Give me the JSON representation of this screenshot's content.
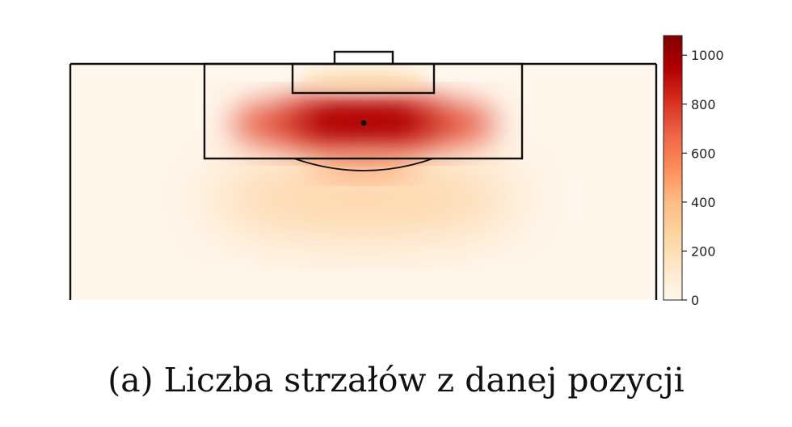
{
  "caption": "(a) Liczba strzałów z danej pozycji",
  "chart_data": {
    "type": "heatmap",
    "title": "",
    "xlabel": "",
    "ylabel": "",
    "subject": "shot locations on football pitch half (attacking third)",
    "colormap": [
      "#fff7ec",
      "#fee8c8",
      "#fdd49e",
      "#fdbb84",
      "#fc8d59",
      "#ef6548",
      "#d7301f",
      "#b30000",
      "#7f0000"
    ],
    "colorbar": {
      "range": [
        0,
        1080
      ],
      "ticks": [
        0,
        200,
        400,
        600,
        800,
        1000
      ],
      "tick_labels": [
        "0",
        "200",
        "400",
        "600",
        "800",
        "1000"
      ]
    },
    "peak_value": 1050,
    "hotspots": [
      {
        "region": "central band inside penalty area (around penalty spot)",
        "value": 950
      },
      {
        "region": "left half-space inside penalty area",
        "value": 750
      },
      {
        "region": "right half-space inside penalty area",
        "value": 750
      },
      {
        "region": "six-yard box",
        "value": 250
      },
      {
        "region": "edge of penalty area / arc",
        "value": 550
      },
      {
        "region": "outside penalty area (central)",
        "value": 300
      },
      {
        "region": "wide areas / deep midfield",
        "value": 20
      }
    ],
    "grid": false
  }
}
